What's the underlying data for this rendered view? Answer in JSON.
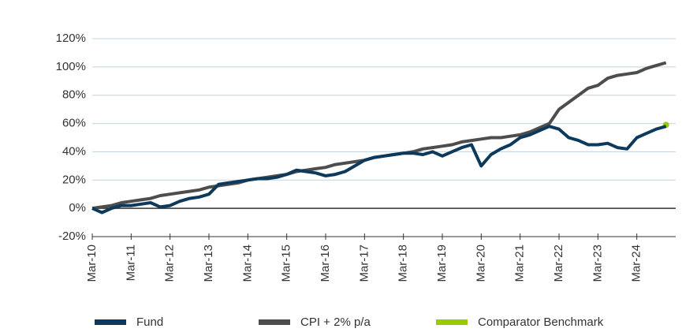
{
  "chart_data": {
    "type": "line",
    "categories": [
      "Mar-10",
      null,
      null,
      null,
      "Mar-11",
      null,
      null,
      null,
      "Mar-12",
      null,
      null,
      null,
      "Mar-13",
      null,
      null,
      null,
      "Mar-14",
      null,
      null,
      null,
      "Mar-15",
      null,
      null,
      null,
      "Mar-16",
      null,
      null,
      null,
      "Mar-17",
      null,
      null,
      null,
      "Mar-18",
      null,
      null,
      null,
      "Mar-19",
      null,
      null,
      null,
      "Mar-20",
      null,
      null,
      null,
      "Mar-21",
      null,
      null,
      null,
      "Mar-22",
      null,
      null,
      null,
      "Mar-23",
      null,
      null,
      null,
      "Mar-24",
      null,
      null,
      null
    ],
    "series": [
      {
        "name": "Fund",
        "color": "#0d3a5c",
        "values": [
          0,
          -3,
          0,
          2,
          2,
          3,
          4,
          1,
          2,
          5,
          7,
          8,
          10,
          17,
          18,
          19,
          20,
          21,
          21,
          22,
          24,
          27,
          26,
          25,
          23,
          24,
          26,
          30,
          34,
          36,
          37,
          38,
          39,
          39,
          38,
          40,
          37,
          40,
          43,
          45,
          30,
          38,
          42,
          45,
          50,
          52,
          55,
          58,
          56,
          50,
          48,
          45,
          45,
          46,
          43,
          42,
          50,
          53,
          56,
          58
        ]
      },
      {
        "name": "CPI + 2% p/a",
        "color": "#4d4d4d",
        "values": [
          0,
          1,
          2,
          4,
          5,
          6,
          7,
          9,
          10,
          11,
          12,
          13,
          15,
          16,
          17,
          18,
          20,
          21,
          22,
          23,
          24,
          26,
          27,
          28,
          29,
          31,
          32,
          33,
          34,
          36,
          37,
          38,
          39,
          40,
          42,
          43,
          44,
          45,
          47,
          48,
          49,
          50,
          50,
          51,
          52,
          54,
          57,
          60,
          70,
          75,
          80,
          85,
          87,
          92,
          94,
          95,
          96,
          99,
          101,
          103
        ]
      },
      {
        "name": "Comparator Benchmark",
        "color": "#99cc00",
        "values": [
          null,
          null,
          null,
          null,
          null,
          null,
          null,
          null,
          null,
          null,
          null,
          null,
          null,
          null,
          null,
          null,
          null,
          null,
          null,
          null,
          null,
          null,
          null,
          null,
          null,
          null,
          null,
          null,
          null,
          null,
          null,
          null,
          null,
          null,
          null,
          null,
          null,
          null,
          null,
          null,
          null,
          null,
          null,
          null,
          null,
          null,
          null,
          null,
          null,
          null,
          null,
          null,
          null,
          null,
          null,
          null,
          null,
          null,
          null,
          59
        ]
      }
    ],
    "ylim": [
      -20,
      120
    ],
    "yticks": [
      {
        "value": -20,
        "label": "-20%"
      },
      {
        "value": 0,
        "label": "0%"
      },
      {
        "value": 20,
        "label": "20%"
      },
      {
        "value": 40,
        "label": "40%"
      },
      {
        "value": 60,
        "label": "60%"
      },
      {
        "value": 80,
        "label": "80%"
      },
      {
        "value": 100,
        "label": "100%"
      },
      {
        "value": 120,
        "label": "120%"
      }
    ],
    "grid": true,
    "legend": "bottom"
  }
}
